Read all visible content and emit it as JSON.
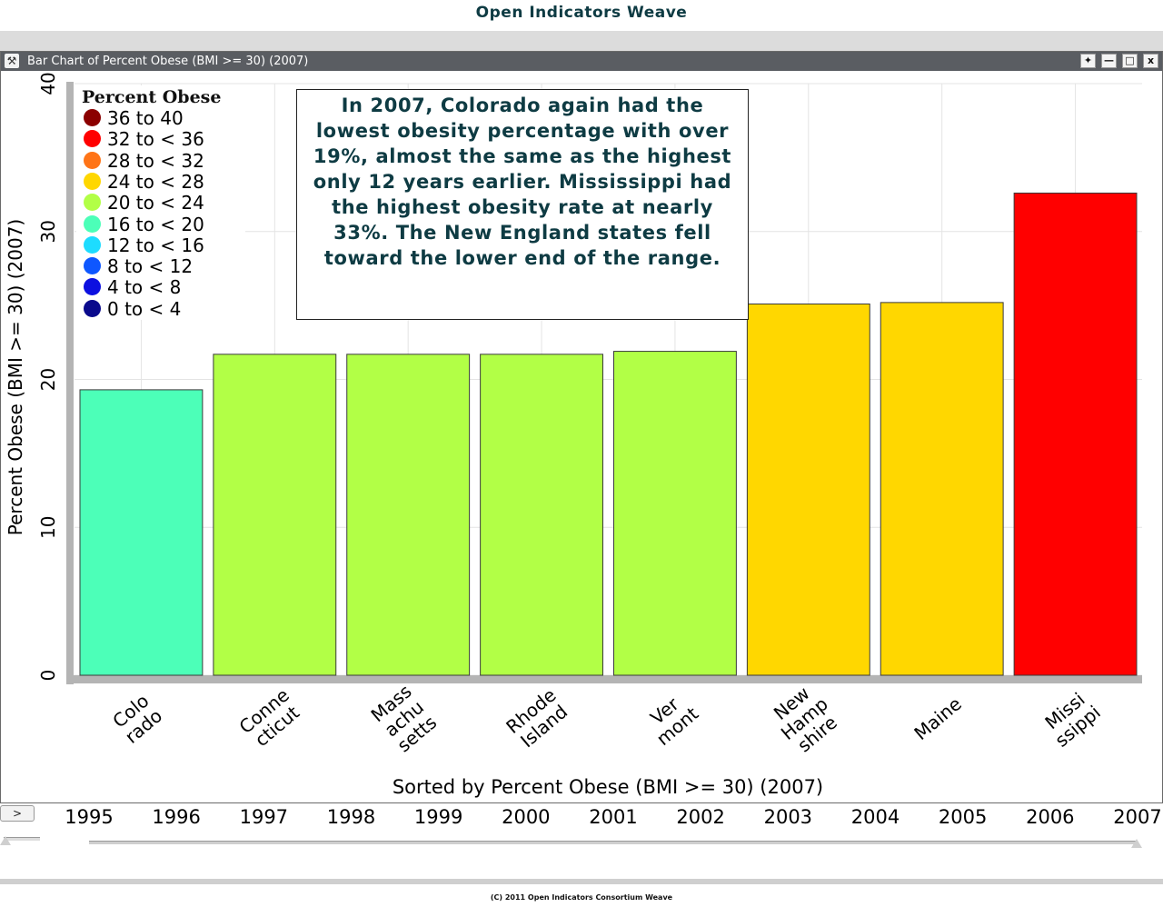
{
  "app": {
    "title": "Open Indicators Weave",
    "footer": "(C) 2011 Open Indicators Consortium Weave"
  },
  "window": {
    "title": "Bar Chart of Percent Obese (BMI >= 30) (2007)",
    "buttons": [
      "pin",
      "minimize",
      "maximize",
      "close"
    ],
    "close_label": "x"
  },
  "annotation": "In 2007, Colorado again had the lowest obesity percentage with over 19%, almost the same as the highest only 12 years earlier. Mississippi had the highest obesity rate at nearly 33%. The New England states fell toward the lower end of the range.",
  "legend": {
    "title": "Percent Obese",
    "items": [
      {
        "label": "36 to 40",
        "color": "#8b0000"
      },
      {
        "label": "32 to  <  36",
        "color": "#ff0000"
      },
      {
        "label": "28 to  <  32",
        "color": "#ff7417"
      },
      {
        "label": "24 to  <  28",
        "color": "#ffd700"
      },
      {
        "label": "20 to  <  24",
        "color": "#b2ff46"
      },
      {
        "label": "16 to  <  20",
        "color": "#4cffb8"
      },
      {
        "label": "12 to  <  16",
        "color": "#1ddcff"
      },
      {
        "label": "8 to  <  12",
        "color": "#0e57ff"
      },
      {
        "label": "4 to  <  8",
        "color": "#0c10e0"
      },
      {
        "label": "0 to  <  4",
        "color": "#0a0a8c"
      }
    ]
  },
  "chart_data": {
    "type": "bar",
    "categories": [
      [
        "Colo",
        "rado"
      ],
      [
        "Conne",
        "cticut"
      ],
      [
        "Mass",
        "achu",
        "setts"
      ],
      [
        "Rhode",
        "Island"
      ],
      [
        "Ver",
        "mont"
      ],
      [
        "New",
        "Hamp",
        "shire"
      ],
      [
        "Maine"
      ],
      [
        "Missi",
        "ssippi"
      ]
    ],
    "category_names": [
      "Colorado",
      "Connecticut",
      "Massachusetts",
      "Rhode Island",
      "Vermont",
      "New Hampshire",
      "Maine",
      "Mississippi"
    ],
    "values": [
      19.3,
      21.7,
      21.7,
      21.7,
      21.9,
      25.1,
      25.2,
      32.6
    ],
    "colors": [
      "#4cffb8",
      "#b2ff46",
      "#b2ff46",
      "#b2ff46",
      "#b2ff46",
      "#ffd700",
      "#ffd700",
      "#ff0000"
    ],
    "ylim": [
      0,
      40
    ],
    "yticks": [
      0,
      10,
      20,
      30,
      40
    ],
    "xlabel": "Sorted by Percent Obese (BMI  >=  30) (2007)",
    "ylabel": "Percent Obese (BMI  >=  30) (2007)",
    "grid": true
  },
  "timeline": {
    "play_label": ">",
    "years": [
      "1995",
      "1996",
      "1997",
      "1998",
      "1999",
      "2000",
      "2001",
      "2002",
      "2003",
      "2004",
      "2005",
      "2006",
      "2007"
    ],
    "selected": "2007"
  }
}
